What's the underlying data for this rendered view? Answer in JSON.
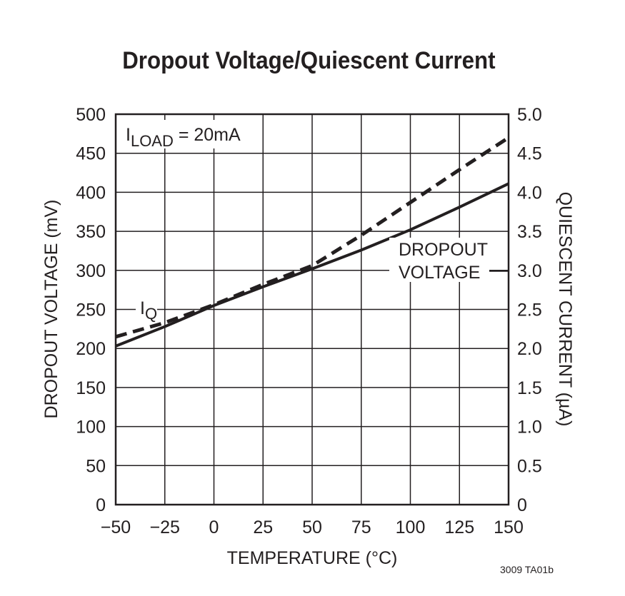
{
  "chart_data": {
    "type": "line",
    "title": "Dropout Voltage/Quiescent Current",
    "xlabel": "TEMPERATURE (°C)",
    "ylabel": "DROPOUT VOLTAGE (mV)",
    "y2label": "QUIESCENT CURRENT (µA)",
    "xlim": [
      -50,
      150
    ],
    "ylim": [
      0,
      500
    ],
    "y2lim": [
      0,
      5
    ],
    "grid": true,
    "x_ticks": [
      "−50",
      "−25",
      "0",
      "25",
      "50",
      "75",
      "100",
      "125",
      "150"
    ],
    "y_ticks": [
      "0",
      "50",
      "100",
      "150",
      "200",
      "250",
      "300",
      "350",
      "400",
      "450",
      "500"
    ],
    "y2_ticks": [
      "0",
      "0.5",
      "1.0",
      "1.5",
      "2.0",
      "2.5",
      "3.0",
      "3.5",
      "4.0",
      "4.5",
      "5.0"
    ],
    "x": [
      -50,
      -25,
      0,
      25,
      50,
      75,
      100,
      125,
      150
    ],
    "series": [
      {
        "name": "DROPOUT VOLTAGE",
        "axis": "left",
        "style": "solid",
        "values": [
          203,
          228,
          255,
          279,
          302,
          326,
          352,
          381,
          411
        ]
      },
      {
        "name": "IQ",
        "axis": "right",
        "style": "dashed",
        "values": [
          2.15,
          2.33,
          2.56,
          2.82,
          3.06,
          3.45,
          3.87,
          4.29,
          4.7
        ]
      }
    ],
    "annotations": {
      "condition_main": "I",
      "condition_sub": "LOAD",
      "condition_rest": " = 20mA",
      "dropout_label_1": "DROPOUT",
      "dropout_label_2": "VOLTAGE",
      "iq_main": "I",
      "iq_sub": "Q"
    },
    "figure_code": "3009 TA01b",
    "colors": {
      "ink": "#231f20",
      "background": "#ffffff"
    }
  }
}
